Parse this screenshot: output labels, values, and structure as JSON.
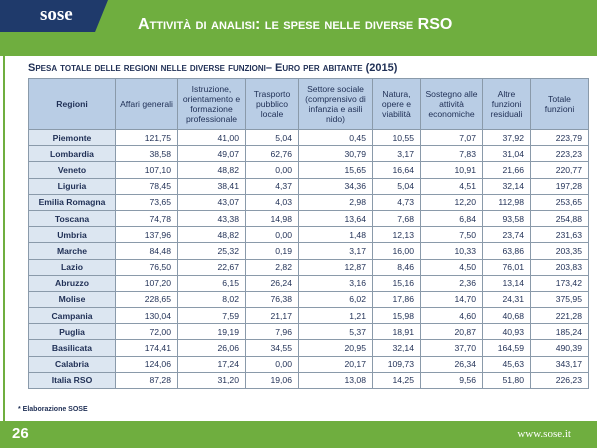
{
  "header": {
    "logo": "sose",
    "title": "Attività di analisi: le spese nelle diverse RSO"
  },
  "subtitle": "Spesa totale delle regioni nelle diverse funzioni– Euro per abitante (2015)",
  "table": {
    "columns": [
      "Regioni",
      "Affari generali",
      "Istruzione, orientamento e formazione professionale",
      "Trasporto pubblico locale",
      "Settore sociale (comprensivo di infanzia e asili nido)",
      "Natura, opere e viabilità",
      "Sostegno alle attività economiche",
      "Altre funzioni residuali",
      "Totale funzioni"
    ],
    "rows": [
      [
        "Piemonte",
        "121,75",
        "41,00",
        "5,04",
        "0,45",
        "10,55",
        "7,07",
        "37,92",
        "223,79"
      ],
      [
        "Lombardia",
        "38,58",
        "49,07",
        "62,76",
        "30,79",
        "3,17",
        "7,83",
        "31,04",
        "223,23"
      ],
      [
        "Veneto",
        "107,10",
        "48,82",
        "0,00",
        "15,65",
        "16,64",
        "10,91",
        "21,66",
        "220,77"
      ],
      [
        "Liguria",
        "78,45",
        "38,41",
        "4,37",
        "34,36",
        "5,04",
        "4,51",
        "32,14",
        "197,28"
      ],
      [
        "Emilia Romagna",
        "73,65",
        "43,07",
        "4,03",
        "2,98",
        "4,73",
        "12,20",
        "112,98",
        "253,65"
      ],
      [
        "Toscana",
        "74,78",
        "43,38",
        "14,98",
        "13,64",
        "7,68",
        "6,84",
        "93,58",
        "254,88"
      ],
      [
        "Umbria",
        "137,96",
        "48,82",
        "0,00",
        "1,48",
        "12,13",
        "7,50",
        "23,74",
        "231,63"
      ],
      [
        "Marche",
        "84,48",
        "25,32",
        "0,19",
        "3,17",
        "16,00",
        "10,33",
        "63,86",
        "203,35"
      ],
      [
        "Lazio",
        "76,50",
        "22,67",
        "2,82",
        "12,87",
        "8,46",
        "4,50",
        "76,01",
        "203,83"
      ],
      [
        "Abruzzo",
        "107,20",
        "6,15",
        "26,24",
        "3,16",
        "15,16",
        "2,36",
        "13,14",
        "173,42"
      ],
      [
        "Molise",
        "228,65",
        "8,02",
        "76,38",
        "6,02",
        "17,86",
        "14,70",
        "24,31",
        "375,95"
      ],
      [
        "Campania",
        "130,04",
        "7,59",
        "21,17",
        "1,21",
        "15,98",
        "4,60",
        "40,68",
        "221,28"
      ],
      [
        "Puglia",
        "72,00",
        "19,19",
        "7,96",
        "5,37",
        "18,91",
        "20,87",
        "40,93",
        "185,24"
      ],
      [
        "Basilicata",
        "174,41",
        "26,06",
        "34,55",
        "20,95",
        "32,14",
        "37,70",
        "164,59",
        "490,39"
      ],
      [
        "Calabria",
        "124,06",
        "17,24",
        "0,00",
        "20,17",
        "109,73",
        "26,34",
        "45,63",
        "343,17"
      ],
      [
        "Italia RSO",
        "87,28",
        "31,20",
        "19,06",
        "13,08",
        "14,25",
        "9,56",
        "51,80",
        "226,23"
      ]
    ]
  },
  "footnote": "* Elaborazione SOSE",
  "footer": {
    "page": "26",
    "url": "www.sose.it"
  }
}
